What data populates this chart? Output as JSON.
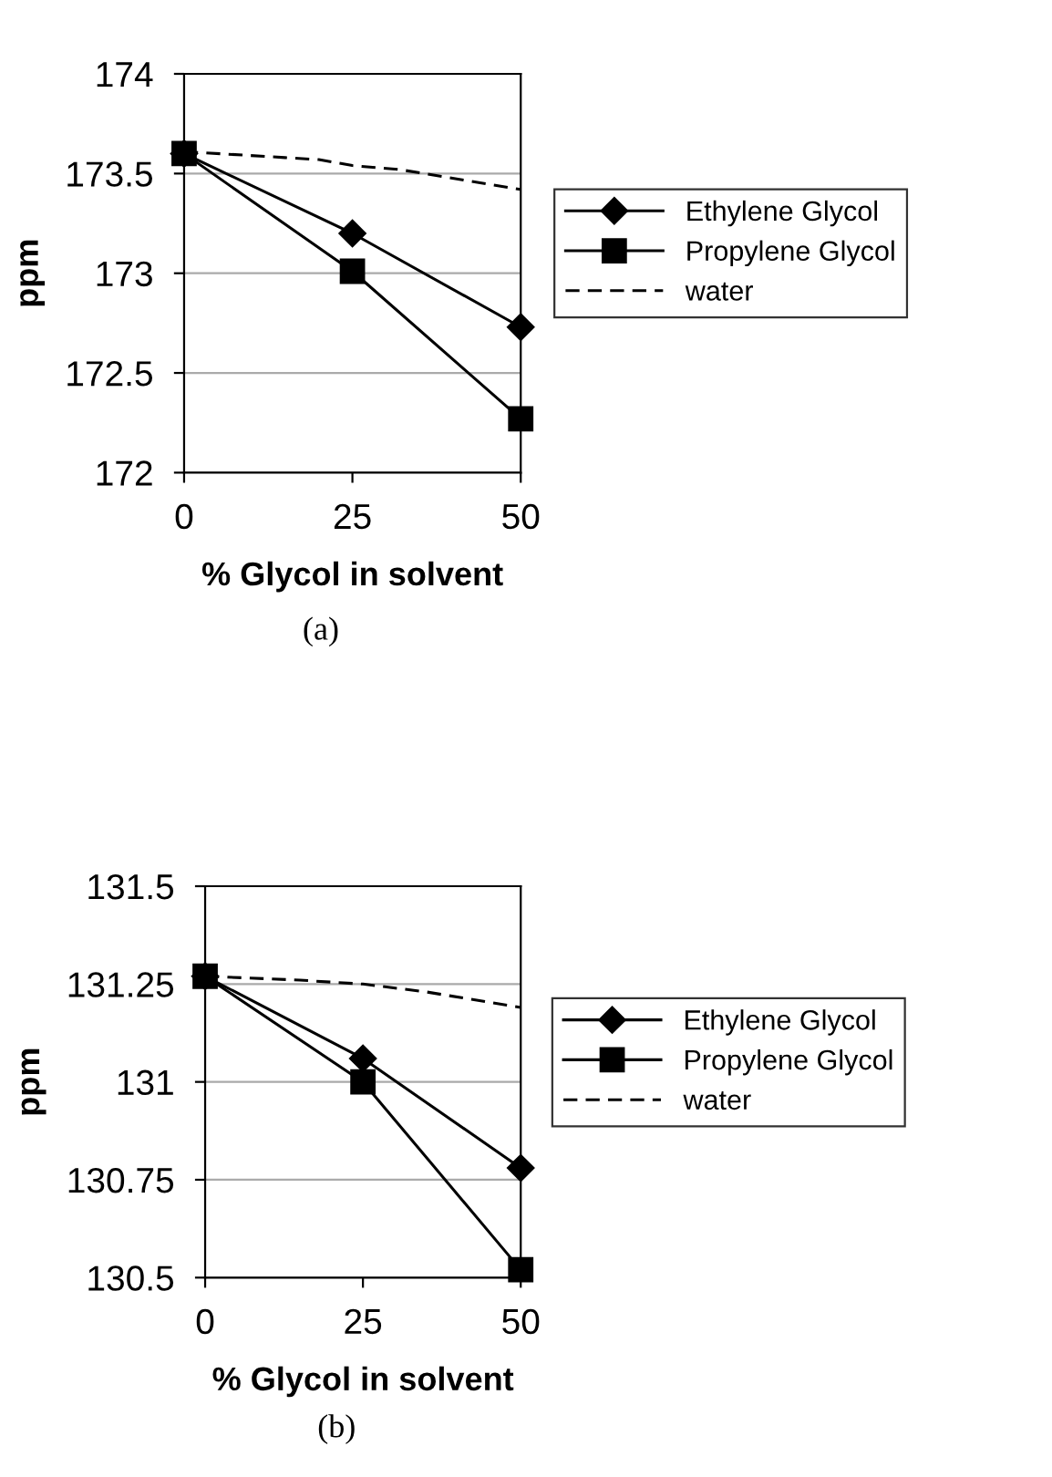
{
  "chart_data": [
    {
      "type": "line",
      "x": [
        0,
        25,
        50
      ],
      "xlabel": "% Glycol in solvent",
      "ylabel": "ppm",
      "xlim": [
        0,
        50
      ],
      "xticks": [
        0,
        25,
        50
      ],
      "ylim": [
        172,
        174
      ],
      "yticks": [
        172,
        172.5,
        173,
        173.5,
        174
      ],
      "grid": "y",
      "legend": "right",
      "annotations": [
        "(a)"
      ],
      "series": [
        {
          "name": "Ethylene Glycol",
          "color": "#000000",
          "marker": "diamond",
          "line_style": "solid",
          "values": [
            173.6,
            173.2,
            172.73
          ]
        },
        {
          "name": "Propylene Glycol",
          "color": "#000000",
          "marker": "square",
          "line_style": "solid",
          "values": [
            173.6,
            173.01,
            172.27
          ]
        },
        {
          "name": "water",
          "color": "#000000",
          "marker": "none",
          "line_style": "dashed",
          "x": [
            0,
            15,
            20,
            25,
            32,
            50
          ],
          "values": [
            173.61,
            173.58,
            173.57,
            173.54,
            173.52,
            173.42
          ]
        }
      ]
    },
    {
      "type": "line",
      "x": [
        0,
        25,
        50
      ],
      "xlabel": "% Glycol in solvent",
      "ylabel": "ppm",
      "xlim": [
        0,
        50
      ],
      "xticks": [
        0,
        25,
        50
      ],
      "ylim": [
        130.5,
        131.5
      ],
      "yticks": [
        130.5,
        130.75,
        131,
        131.25,
        131.5
      ],
      "grid": "y",
      "legend": "right",
      "annotations": [
        "(b)"
      ],
      "series": [
        {
          "name": "Ethylene Glycol",
          "color": "#000000",
          "marker": "diamond",
          "line_style": "solid",
          "values": [
            131.27,
            131.06,
            130.78
          ]
        },
        {
          "name": "Propylene Glycol",
          "color": "#000000",
          "marker": "square",
          "line_style": "solid",
          "values": [
            131.27,
            131.0,
            130.52
          ]
        },
        {
          "name": "water",
          "color": "#000000",
          "marker": "none",
          "line_style": "dashed",
          "x": [
            0,
            15,
            25,
            35,
            50
          ],
          "values": [
            131.27,
            131.26,
            131.25,
            131.23,
            131.19
          ]
        }
      ]
    }
  ]
}
